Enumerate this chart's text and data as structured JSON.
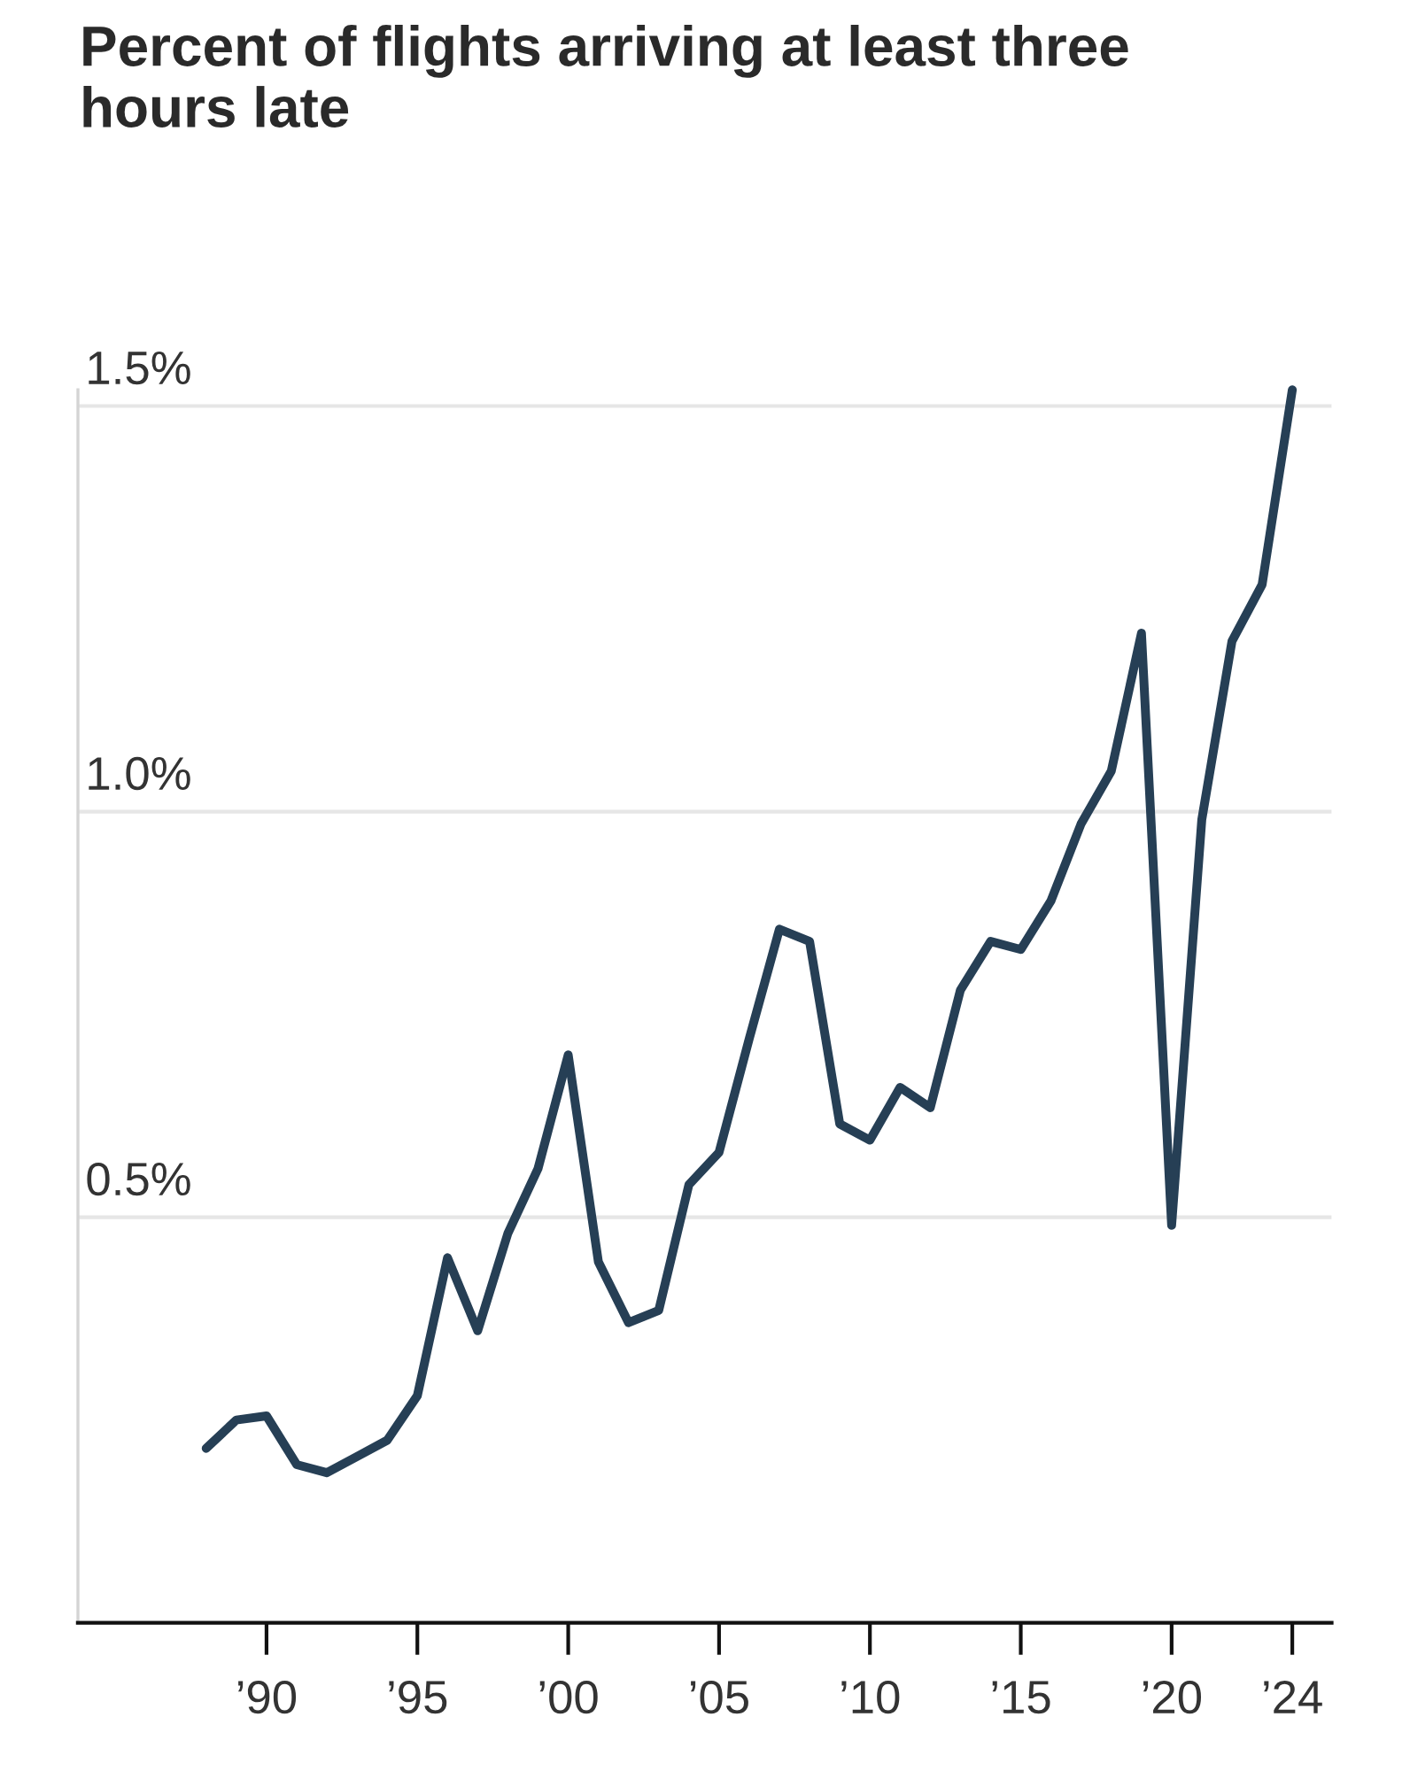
{
  "chart_data": {
    "type": "line",
    "title": "Percent of flights arriving at least three hours late",
    "x": [
      1988,
      1989,
      1990,
      1991,
      1992,
      1993,
      1994,
      1995,
      1996,
      1997,
      1998,
      1999,
      2000,
      2001,
      2002,
      2003,
      2004,
      2005,
      2006,
      2007,
      2008,
      2009,
      2010,
      2011,
      2012,
      2013,
      2014,
      2015,
      2016,
      2017,
      2018,
      2019,
      2020,
      2021,
      2022,
      2023,
      2024
    ],
    "values": [
      0.215,
      0.25,
      0.255,
      0.195,
      0.185,
      0.205,
      0.225,
      0.28,
      0.45,
      0.36,
      0.48,
      0.56,
      0.7,
      0.445,
      0.37,
      0.385,
      0.54,
      0.58,
      0.72,
      0.855,
      0.84,
      0.615,
      0.595,
      0.66,
      0.635,
      0.78,
      0.84,
      0.83,
      0.89,
      0.985,
      1.05,
      1.22,
      0.49,
      0.99,
      1.21,
      1.28,
      1.52
    ],
    "color": "#263f55",
    "xlim": [
      1983.75,
      2025.3
    ],
    "ylim": [
      0,
      1.52
    ],
    "xticks": [
      {
        "value": 1990,
        "label": "’90"
      },
      {
        "value": 1995,
        "label": "’95"
      },
      {
        "value": 2000,
        "label": "’00"
      },
      {
        "value": 2005,
        "label": "’05"
      },
      {
        "value": 2010,
        "label": "’10"
      },
      {
        "value": 2015,
        "label": "’15"
      },
      {
        "value": 2020,
        "label": "’20"
      },
      {
        "value": 2024,
        "label": "’24"
      }
    ],
    "yticks": [
      {
        "value": 0.5,
        "label": "0.5%"
      },
      {
        "value": 1.0,
        "label": "1.0%"
      },
      {
        "value": 1.5,
        "label": "1.5%"
      }
    ],
    "grid": "y"
  }
}
